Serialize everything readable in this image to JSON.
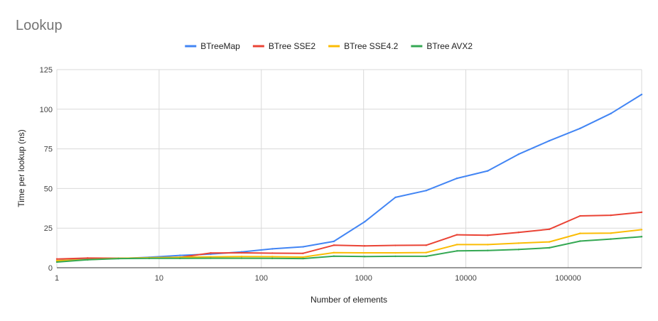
{
  "chart_data": {
    "type": "line",
    "title": "Lookup",
    "xlabel": "Number of elements",
    "ylabel": "Time per lookup (ns)",
    "xscale": "log",
    "xlim": [
      1,
      524288
    ],
    "ylim": [
      0,
      125
    ],
    "xticks": [
      1,
      10,
      100,
      1000,
      10000,
      100000
    ],
    "xtick_labels": [
      "1",
      "10",
      "100",
      "1000",
      "10000",
      "100000"
    ],
    "yticks": [
      0,
      25,
      50,
      75,
      100,
      125
    ],
    "ytick_labels": [
      "0",
      "25",
      "50",
      "75",
      "100",
      "125"
    ],
    "grid": true,
    "legend_position": "top",
    "x": [
      1,
      2,
      4,
      8,
      16,
      32,
      64,
      128,
      256,
      512,
      1024,
      2048,
      4096,
      8192,
      16384,
      32768,
      65536,
      131072,
      262144,
      524288
    ],
    "series": [
      {
        "name": "BTreeMap",
        "color": "#4285f4",
        "values": [
          4.5,
          5.5,
          5.8,
          6.6,
          7.8,
          8.6,
          10.0,
          11.9,
          13.2,
          16.6,
          29.0,
          44.4,
          48.7,
          56.4,
          61.1,
          71.6,
          80.1,
          87.9,
          97.3,
          109.3
        ]
      },
      {
        "name": "BTree SSE2",
        "color": "#ea4335",
        "values": [
          5.5,
          6.1,
          6.0,
          6.1,
          6.6,
          9.3,
          9.4,
          9.2,
          9.1,
          14.2,
          13.8,
          14.1,
          14.2,
          20.8,
          20.5,
          22.3,
          24.3,
          32.7,
          33.1,
          35.0
        ]
      },
      {
        "name": "BTree SSE4.2",
        "color": "#fbbc04",
        "values": [
          4.5,
          5.1,
          5.9,
          6.3,
          6.6,
          6.9,
          7.1,
          7.0,
          6.7,
          9.5,
          9.4,
          9.4,
          9.6,
          14.6,
          14.6,
          15.5,
          16.3,
          21.7,
          21.8,
          24.0
        ]
      },
      {
        "name": "BTree AVX2",
        "color": "#34a853",
        "values": [
          3.6,
          5.0,
          5.8,
          5.9,
          5.9,
          6.0,
          6.0,
          5.9,
          5.8,
          7.3,
          7.1,
          7.2,
          7.2,
          10.6,
          10.9,
          11.5,
          12.6,
          16.8,
          18.1,
          19.6
        ]
      }
    ]
  }
}
